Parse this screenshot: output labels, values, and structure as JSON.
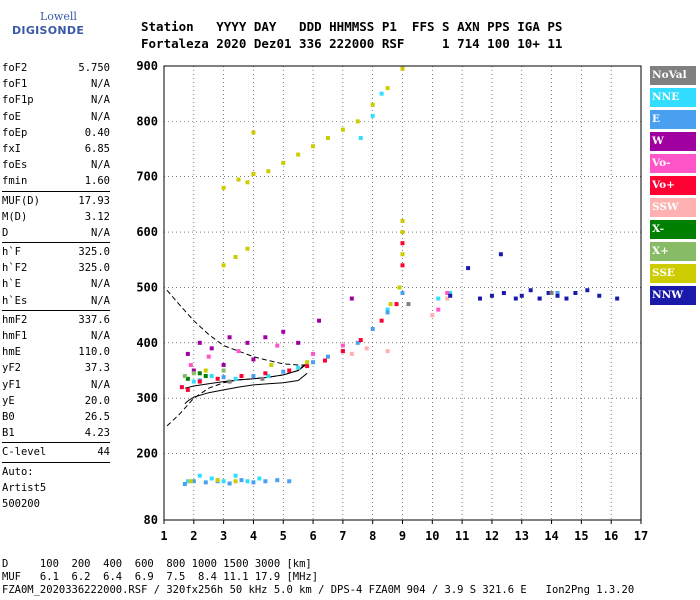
{
  "logo": {
    "line1": "Lowell",
    "line2": "DIGISONDE"
  },
  "header": {
    "line1": "Station   YYYY DAY   DDD HHMMSS P1  FFS S AXN PPS IGA PS",
    "line2": "Fortaleza 2020 Dez01 336 222000 RSF     1 714 100 10+ 11"
  },
  "params": [
    {
      "type": "row",
      "name": "foF2",
      "value": "5.750"
    },
    {
      "type": "row",
      "name": "foF1",
      "value": "N/A"
    },
    {
      "type": "row",
      "name": "foF1p",
      "value": "N/A"
    },
    {
      "type": "row",
      "name": "foE",
      "value": "N/A"
    },
    {
      "type": "row",
      "name": "foEp",
      "value": "0.40"
    },
    {
      "type": "row",
      "name": "fxI",
      "value": "6.85"
    },
    {
      "type": "row",
      "name": "foEs",
      "value": "N/A"
    },
    {
      "type": "row",
      "name": "fmin",
      "value": "1.60"
    },
    {
      "type": "sep"
    },
    {
      "type": "row",
      "name": "MUF(D)",
      "value": "17.93"
    },
    {
      "type": "row",
      "name": "M(D)",
      "value": "3.12"
    },
    {
      "type": "row",
      "name": "D",
      "value": "N/A"
    },
    {
      "type": "sep"
    },
    {
      "type": "row",
      "name": "h`F",
      "value": "325.0"
    },
    {
      "type": "row",
      "name": "h`F2",
      "value": "325.0"
    },
    {
      "type": "row",
      "name": "h`E",
      "value": "N/A"
    },
    {
      "type": "row",
      "name": "h`Es",
      "value": "N/A"
    },
    {
      "type": "sep"
    },
    {
      "type": "row",
      "name": "hmF2",
      "value": "337.6"
    },
    {
      "type": "row",
      "name": "hmF1",
      "value": "N/A"
    },
    {
      "type": "row",
      "name": "hmE",
      "value": "110.0"
    },
    {
      "type": "row",
      "name": "yF2",
      "value": "37.3"
    },
    {
      "type": "row",
      "name": "yF1",
      "value": "N/A"
    },
    {
      "type": "row",
      "name": "yE",
      "value": "20.0"
    },
    {
      "type": "row",
      "name": "B0",
      "value": "26.5"
    },
    {
      "type": "row",
      "name": "B1",
      "value": "4.23"
    },
    {
      "type": "sep"
    },
    {
      "type": "row",
      "name": "C-level",
      "value": "44"
    },
    {
      "type": "sep"
    },
    {
      "type": "text",
      "text": "Auto:"
    },
    {
      "type": "text",
      "text": "Artist5"
    },
    {
      "type": "text",
      "text": "500200"
    }
  ],
  "legend": [
    {
      "label": "NoVal",
      "color": "#808080"
    },
    {
      "label": "NNE",
      "color": "#33ddff"
    },
    {
      "label": "E",
      "color": "#4aa0f0"
    },
    {
      "label": "W",
      "color": "#a000a0"
    },
    {
      "label": "Vo-",
      "color": "#ff55c8"
    },
    {
      "label": "Vo+",
      "color": "#ff0033"
    },
    {
      "label": "SSW",
      "color": "#ffb0b0"
    },
    {
      "label": "X-",
      "color": "#008000"
    },
    {
      "label": "X+",
      "color": "#88bb66"
    },
    {
      "label": "SSE",
      "color": "#cccc00"
    },
    {
      "label": "NNW",
      "color": "#1a1aaa"
    }
  ],
  "footer": {
    "line1": "D     100  200  400  600  800 1000 1500 3000 [km]",
    "line2": "MUF   6.1  6.2  6.4  6.9  7.5  8.4 11.1 17.9 [MHz]",
    "line3": "FZA0M_2020336222000.RSF / 320fx256h 50 kHz 5.0 km / DPS-4 FZA0M 904 / 3.9 S 321.6 E   Ion2Png 1.3.20"
  },
  "chart_data": {
    "type": "scatter",
    "xlim": [
      1,
      17
    ],
    "ylim": [
      80,
      900
    ],
    "x_ticks": [
      1,
      2,
      3,
      4,
      5,
      6,
      7,
      8,
      9,
      10,
      11,
      12,
      13,
      14,
      15,
      16,
      17
    ],
    "y_ticks": [
      80,
      200,
      300,
      400,
      500,
      600,
      700,
      800,
      900
    ],
    "grid": true,
    "series": [
      {
        "name": "NNE",
        "color": "#33ddff",
        "points": [
          [
            1.8,
            150
          ],
          [
            2.2,
            160
          ],
          [
            2.6,
            155
          ],
          [
            3.0,
            150
          ],
          [
            3.4,
            160
          ],
          [
            3.8,
            150
          ],
          [
            4.2,
            155
          ],
          [
            2.0,
            330
          ],
          [
            2.6,
            340
          ],
          [
            3.4,
            335
          ],
          [
            4.5,
            340
          ],
          [
            5.5,
            355
          ],
          [
            8.5,
            460
          ],
          [
            10.2,
            480
          ],
          [
            10.6,
            490
          ],
          [
            7.6,
            770
          ],
          [
            8.0,
            810
          ],
          [
            8.3,
            850
          ]
        ]
      },
      {
        "name": "E",
        "color": "#4aa0f0",
        "points": [
          [
            1.7,
            145
          ],
          [
            2.0,
            150
          ],
          [
            2.4,
            148
          ],
          [
            2.8,
            150
          ],
          [
            3.2,
            146
          ],
          [
            3.6,
            152
          ],
          [
            4.0,
            148
          ],
          [
            4.4,
            150
          ],
          [
            4.8,
            152
          ],
          [
            5.2,
            150
          ],
          [
            2.2,
            332
          ],
          [
            3.0,
            338
          ],
          [
            4.0,
            340
          ],
          [
            5.0,
            348
          ],
          [
            6.0,
            365
          ],
          [
            6.5,
            375
          ],
          [
            7.0,
            385
          ],
          [
            7.5,
            400
          ],
          [
            8.0,
            425
          ],
          [
            8.5,
            455
          ],
          [
            9.0,
            490
          ],
          [
            13.6,
            480
          ],
          [
            14.2,
            490
          ]
        ]
      },
      {
        "name": "W",
        "color": "#a000a0",
        "points": [
          [
            1.8,
            380
          ],
          [
            2.2,
            400
          ],
          [
            2.6,
            390
          ],
          [
            3.2,
            410
          ],
          [
            3.8,
            400
          ],
          [
            4.4,
            410
          ],
          [
            5.0,
            420
          ],
          [
            5.5,
            400
          ],
          [
            6.2,
            440
          ],
          [
            7.3,
            480
          ],
          [
            2.0,
            350
          ],
          [
            3.0,
            360
          ],
          [
            4.0,
            370
          ]
        ]
      },
      {
        "name": "Vo-",
        "color": "#ff55c8",
        "points": [
          [
            1.9,
            360
          ],
          [
            2.5,
            375
          ],
          [
            3.5,
            385
          ],
          [
            4.8,
            395
          ],
          [
            6.0,
            380
          ],
          [
            7.0,
            395
          ],
          [
            10.5,
            490
          ],
          [
            10.2,
            460
          ]
        ]
      },
      {
        "name": "Vo+",
        "color": "#ff0033",
        "points": [
          [
            1.6,
            320
          ],
          [
            1.8,
            315
          ],
          [
            2.2,
            330
          ],
          [
            2.8,
            335
          ],
          [
            3.6,
            340
          ],
          [
            4.4,
            345
          ],
          [
            5.2,
            350
          ],
          [
            5.8,
            358
          ],
          [
            6.4,
            368
          ],
          [
            7.0,
            385
          ],
          [
            7.6,
            405
          ],
          [
            8.3,
            440
          ],
          [
            8.8,
            470
          ],
          [
            9.0,
            540
          ],
          [
            9.0,
            580
          ]
        ]
      },
      {
        "name": "SSW",
        "color": "#ffb0b0",
        "points": [
          [
            7.3,
            380
          ],
          [
            7.8,
            390
          ],
          [
            8.5,
            385
          ],
          [
            10.0,
            450
          ],
          [
            10.5,
            480
          ]
        ]
      },
      {
        "name": "X-",
        "color": "#008000",
        "points": [
          [
            1.8,
            335
          ],
          [
            2.2,
            345
          ],
          [
            2.4,
            340
          ]
        ]
      },
      {
        "name": "X+",
        "color": "#88bb66",
        "points": [
          [
            1.7,
            340
          ],
          [
            2.0,
            345
          ],
          [
            3.0,
            350
          ]
        ]
      },
      {
        "name": "SSE",
        "color": "#cccc00",
        "points": [
          [
            1.9,
            150
          ],
          [
            2.8,
            152
          ],
          [
            3.4,
            150
          ],
          [
            3.0,
            540
          ],
          [
            3.4,
            555
          ],
          [
            3.8,
            570
          ],
          [
            3.0,
            680
          ],
          [
            3.5,
            695
          ],
          [
            4.0,
            705
          ],
          [
            4.5,
            710
          ],
          [
            5.0,
            725
          ],
          [
            5.5,
            740
          ],
          [
            6.0,
            755
          ],
          [
            6.5,
            770
          ],
          [
            7.0,
            785
          ],
          [
            7.5,
            800
          ],
          [
            8.0,
            830
          ],
          [
            8.5,
            860
          ],
          [
            9.0,
            895
          ],
          [
            8.6,
            470
          ],
          [
            8.9,
            500
          ],
          [
            9.0,
            560
          ],
          [
            9.0,
            620
          ],
          [
            9.0,
            600
          ],
          [
            2.4,
            350
          ],
          [
            4.6,
            360
          ],
          [
            5.8,
            365
          ],
          [
            4.0,
            780
          ],
          [
            3.8,
            690
          ]
        ]
      },
      {
        "name": "NNW",
        "color": "#1a1aaa",
        "points": [
          [
            11.6,
            480
          ],
          [
            12.0,
            485
          ],
          [
            12.4,
            490
          ],
          [
            12.8,
            480
          ],
          [
            13.0,
            485
          ],
          [
            13.3,
            495
          ],
          [
            13.6,
            480
          ],
          [
            13.9,
            490
          ],
          [
            14.2,
            485
          ],
          [
            14.5,
            480
          ],
          [
            14.8,
            490
          ],
          [
            15.2,
            495
          ],
          [
            15.6,
            485
          ],
          [
            16.2,
            480
          ],
          [
            12.3,
            560
          ],
          [
            11.2,
            535
          ],
          [
            10.6,
            485
          ]
        ]
      },
      {
        "name": "NoVal",
        "color": "#808080",
        "points": [
          [
            3.2,
            330
          ],
          [
            4.3,
            335
          ],
          [
            9.2,
            470
          ],
          [
            14.0,
            490
          ]
        ]
      }
    ],
    "curves": [
      {
        "style": "solid",
        "points": [
          [
            1.7,
            290
          ],
          [
            1.8,
            295
          ],
          [
            2.0,
            302
          ],
          [
            2.5,
            310
          ],
          [
            3.0,
            315
          ],
          [
            3.5,
            320
          ],
          [
            4.0,
            324
          ],
          [
            4.5,
            326
          ],
          [
            5.0,
            328
          ],
          [
            5.5,
            332
          ],
          [
            5.8,
            345
          ]
        ]
      },
      {
        "style": "solid",
        "points": [
          [
            1.7,
            318
          ],
          [
            2.0,
            322
          ],
          [
            2.5,
            326
          ],
          [
            3.0,
            330
          ],
          [
            3.5,
            333
          ],
          [
            4.0,
            335
          ],
          [
            4.5,
            338
          ],
          [
            5.0,
            342
          ],
          [
            5.5,
            350
          ],
          [
            5.8,
            362
          ]
        ]
      },
      {
        "style": "dashed",
        "points": [
          [
            1.1,
            250
          ],
          [
            1.5,
            270
          ],
          [
            2.0,
            300
          ],
          [
            2.5,
            318
          ],
          [
            3.0,
            328
          ],
          [
            3.5,
            333
          ],
          [
            4.0,
            335
          ],
          [
            4.5,
            338
          ],
          [
            5.0,
            342
          ],
          [
            5.5,
            350
          ],
          [
            5.8,
            365
          ]
        ]
      },
      {
        "style": "dashed",
        "points": [
          [
            1.1,
            495
          ],
          [
            1.5,
            470
          ],
          [
            2.0,
            440
          ],
          [
            2.5,
            415
          ],
          [
            3.0,
            395
          ],
          [
            3.5,
            385
          ],
          [
            4.0,
            375
          ],
          [
            4.5,
            368
          ],
          [
            5.0,
            362
          ],
          [
            5.5,
            360
          ],
          [
            5.8,
            360
          ]
        ]
      }
    ]
  }
}
